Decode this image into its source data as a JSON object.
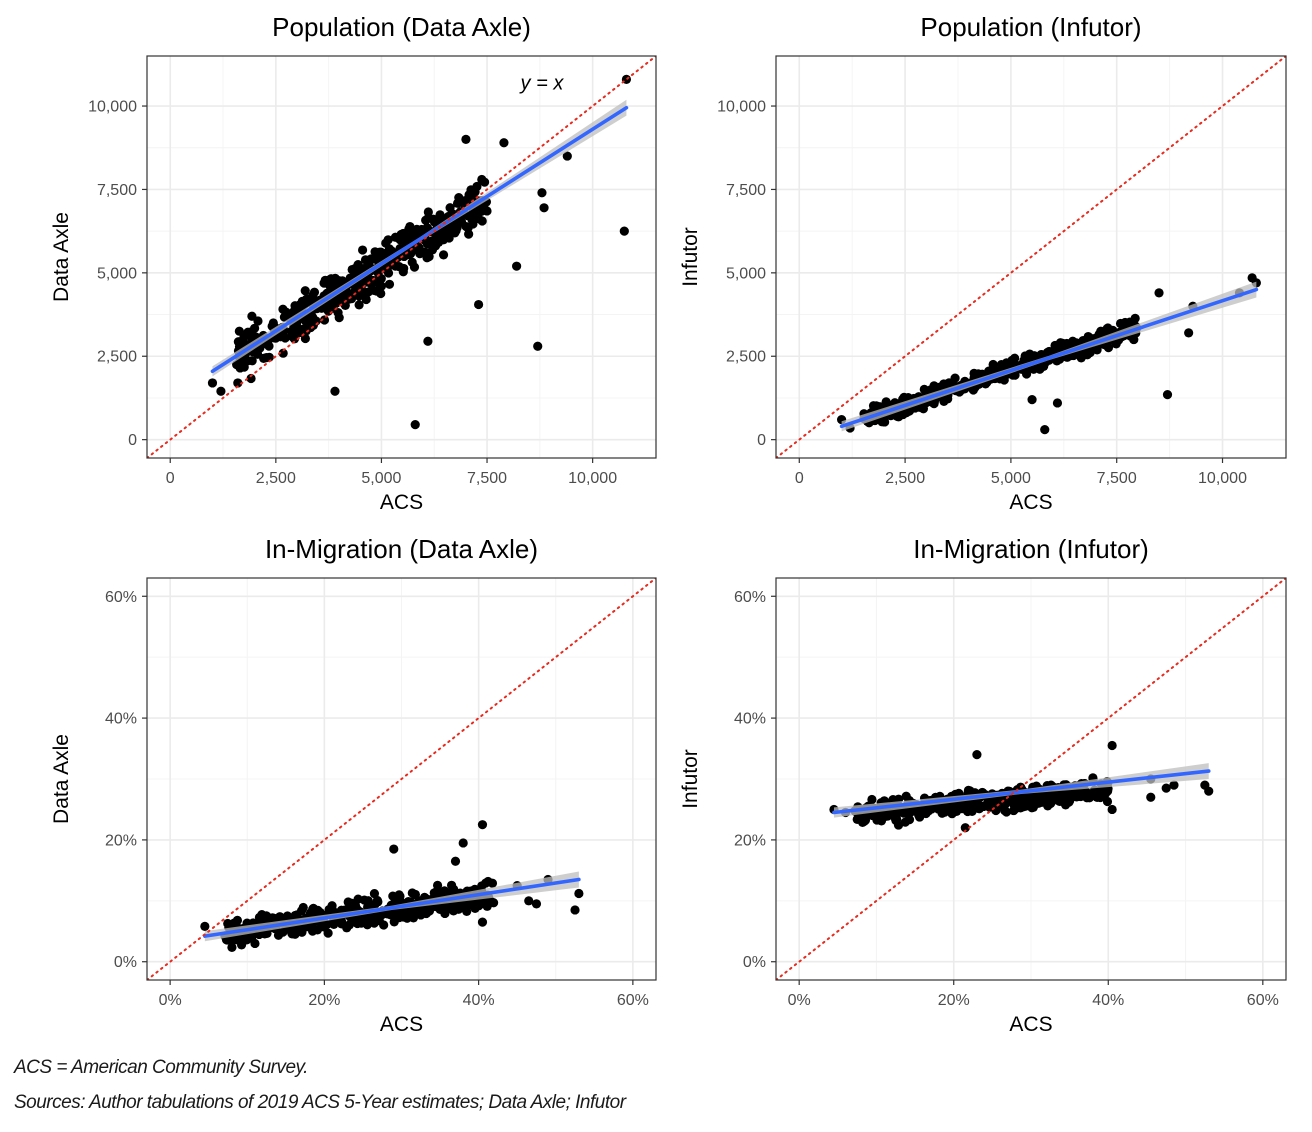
{
  "footnotes": {
    "note1": "ACS = American Community Survey.",
    "note2": "Sources: Author tabulations of 2019 ACS 5-Year estimates; Data Axle; Infutor"
  },
  "chart_data": [
    {
      "type": "scatter",
      "title": "Population (Data Axle)",
      "xlabel": "ACS",
      "ylabel": "Data Axle",
      "xlim": [
        -550,
        11500
      ],
      "ylim": [
        -550,
        11500
      ],
      "x_ticks": [
        0,
        2500,
        5000,
        7500,
        10000
      ],
      "x_tick_labels": [
        "0",
        "2,500",
        "5,000",
        "7,500",
        "10,000"
      ],
      "y_ticks": [
        0,
        2500,
        5000,
        7500,
        10000
      ],
      "y_tick_labels": [
        "0",
        "2,500",
        "5,000",
        "7,500",
        "10,000"
      ],
      "grid": true,
      "identity_line": true,
      "annotation": {
        "text": "y = x",
        "x": 8800,
        "y": 10500
      },
      "fit_line": {
        "x": [
          1000,
          10800
        ],
        "y": [
          2050,
          9950
        ]
      },
      "outliers": [
        [
          10800,
          10800
        ],
        [
          10750,
          6250
        ],
        [
          9400,
          8500
        ],
        [
          8700,
          2800
        ],
        [
          5800,
          450
        ],
        [
          8200,
          5200
        ],
        [
          7300,
          4050
        ],
        [
          3900,
          1450
        ],
        [
          6100,
          2950
        ],
        [
          8800,
          7400
        ],
        [
          8850,
          6950
        ],
        [
          7900,
          8900
        ],
        [
          7000,
          9000
        ],
        [
          1000,
          1700
        ],
        [
          1200,
          1450
        ],
        [
          1600,
          1700
        ]
      ],
      "cluster": {
        "count": 430,
        "x_range": [
          1500,
          7500
        ],
        "slope": 0.8,
        "intercept": 1200,
        "noise": 1000,
        "seed": 11
      }
    },
    {
      "type": "scatter",
      "title": "Population (Infutor)",
      "xlabel": "ACS",
      "ylabel": "Infutor",
      "xlim": [
        -550,
        11500
      ],
      "ylim": [
        -550,
        11500
      ],
      "x_ticks": [
        0,
        2500,
        5000,
        7500,
        10000
      ],
      "x_tick_labels": [
        "0",
        "2,500",
        "5,000",
        "7,500",
        "10,000"
      ],
      "y_ticks": [
        0,
        2500,
        5000,
        7500,
        10000
      ],
      "y_tick_labels": [
        "0",
        "2,500",
        "5,000",
        "7,500",
        "10,000"
      ],
      "grid": true,
      "identity_line": true,
      "fit_line": {
        "x": [
          1000,
          10800
        ],
        "y": [
          400,
          4500
        ]
      },
      "outliers": [
        [
          10700,
          4850
        ],
        [
          10800,
          4700
        ],
        [
          10400,
          4400
        ],
        [
          9200,
          3200
        ],
        [
          8700,
          1350
        ],
        [
          5800,
          300
        ],
        [
          6100,
          1100
        ],
        [
          5500,
          1200
        ],
        [
          9300,
          4000
        ],
        [
          8500,
          4400
        ],
        [
          1000,
          600
        ],
        [
          1200,
          350
        ]
      ],
      "cluster": {
        "count": 420,
        "x_range": [
          1500,
          8000
        ],
        "slope": 0.42,
        "intercept": 0,
        "noise": 420,
        "seed": 23
      }
    },
    {
      "type": "scatter",
      "title": "In-Migration (Data Axle)",
      "xlabel": "ACS",
      "ylabel": "Data Axle",
      "xlim": [
        -3,
        63
      ],
      "ylim": [
        -3,
        63
      ],
      "x_ticks": [
        0,
        20,
        40,
        60
      ],
      "x_tick_labels": [
        "0%",
        "20%",
        "40%",
        "60%"
      ],
      "y_ticks": [
        0,
        20,
        40,
        60
      ],
      "y_tick_labels": [
        "0%",
        "20%",
        "40%",
        "60%"
      ],
      "grid": true,
      "identity_line": true,
      "fit_line": {
        "x": [
          4.5,
          53
        ],
        "y": [
          4.2,
          13.5
        ]
      },
      "outliers": [
        [
          53,
          11.2
        ],
        [
          52.5,
          8.5
        ],
        [
          49,
          13.5
        ],
        [
          47.5,
          9.5
        ],
        [
          46.5,
          10.0
        ],
        [
          45,
          12.5
        ],
        [
          40.5,
          22.5
        ],
        [
          38,
          19.5
        ],
        [
          37,
          16.5
        ],
        [
          29,
          18.5
        ],
        [
          40.5,
          6.5
        ],
        [
          4.5,
          5.8
        ],
        [
          11,
          3.0
        ]
      ],
      "cluster": {
        "count": 400,
        "x_range": [
          7,
          42
        ],
        "slope": 0.19,
        "intercept": 3.2,
        "noise": 3.2,
        "seed": 37
      }
    },
    {
      "type": "scatter",
      "title": "In-Migration (Infutor)",
      "xlabel": "ACS",
      "ylabel": "Infutor",
      "xlim": [
        -3,
        63
      ],
      "ylim": [
        -3,
        63
      ],
      "x_ticks": [
        0,
        20,
        40,
        60
      ],
      "x_tick_labels": [
        "0%",
        "20%",
        "40%",
        "60%"
      ],
      "y_ticks": [
        0,
        20,
        40,
        60
      ],
      "y_tick_labels": [
        "0%",
        "20%",
        "40%",
        "60%"
      ],
      "grid": true,
      "identity_line": true,
      "fit_line": {
        "x": [
          4.5,
          53
        ],
        "y": [
          24.5,
          31.3
        ]
      },
      "outliers": [
        [
          52.5,
          29.0
        ],
        [
          53,
          28.0
        ],
        [
          48.5,
          29.0
        ],
        [
          47.5,
          28.5
        ],
        [
          45.5,
          27.0
        ],
        [
          45.5,
          30.0
        ],
        [
          40.5,
          35.5
        ],
        [
          40.5,
          25.0
        ],
        [
          23,
          34.0
        ],
        [
          21.5,
          22.0
        ],
        [
          4.5,
          25.0
        ],
        [
          6,
          24.5
        ]
      ],
      "cluster": {
        "count": 400,
        "x_range": [
          7,
          40
        ],
        "slope": 0.12,
        "intercept": 23.5,
        "noise": 2.8,
        "seed": 53
      }
    }
  ],
  "colors": {
    "fit_line": "#3366ff",
    "confidence_band": "#bdbdbd",
    "identity_line": "#e8291c",
    "points": "#000000",
    "grid": "#ebebeb",
    "border": "#333333"
  }
}
